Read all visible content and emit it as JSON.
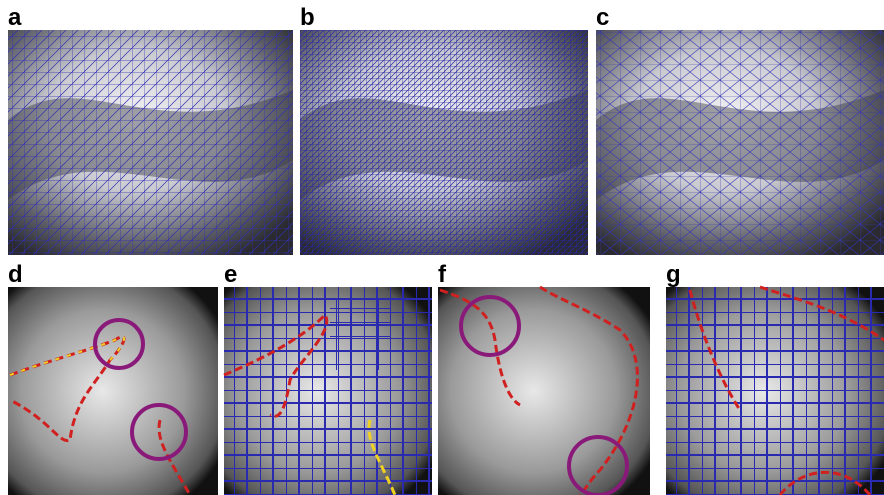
{
  "panels": [
    {
      "label": "a"
    },
    {
      "label": "b"
    },
    {
      "label": "c"
    },
    {
      "label": "d"
    },
    {
      "label": "e"
    },
    {
      "label": "f"
    },
    {
      "label": "g"
    }
  ]
}
